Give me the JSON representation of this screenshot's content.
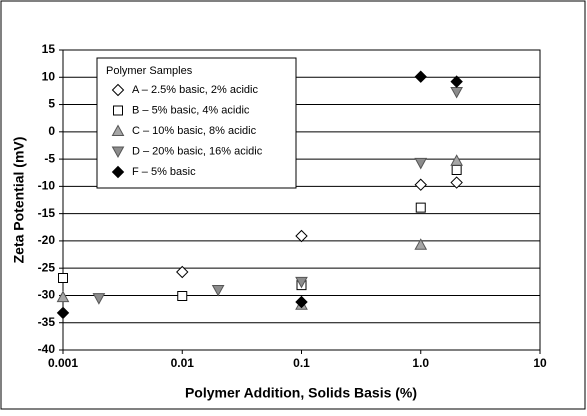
{
  "chart_data": {
    "type": "scatter",
    "x_label": "Polymer Addition, Solids Basis  (%)",
    "y_label": "Zeta Potential  (mV)",
    "xscale": "log",
    "xlim": [
      0.001,
      10
    ],
    "xticks": [
      0.001,
      0.01,
      0.1,
      {
        "value": 1,
        "label": "1.0"
      },
      10
    ],
    "ylim": [
      -40,
      15
    ],
    "yticks": [
      15,
      10,
      5,
      0,
      -5,
      -10,
      -15,
      -20,
      -25,
      -30,
      -35,
      -40
    ],
    "grid": true,
    "legend": {
      "title": "Polymer Samples",
      "location": "upper left"
    },
    "series": [
      {
        "name": "A – 2.5% basic, 2% acidic",
        "marker": "diamond",
        "color": "#ffffff",
        "x": [
          0.01,
          0.1,
          1,
          2
        ],
        "values": [
          -25.7,
          -19.1,
          -9.7,
          -9.3
        ]
      },
      {
        "name": "B – 5% basic, 4% acidic",
        "marker": "square",
        "color": "#ffffff",
        "x": [
          0.001,
          0.01,
          0.1,
          1,
          2
        ],
        "values": [
          -26.8,
          -30.1,
          -28.1,
          -13.9,
          -7
        ]
      },
      {
        "name": "C – 10% basic, 8% acidic",
        "marker": "triangle-up",
        "color": "#a6a6a6",
        "x": [
          0.001,
          0.1,
          1,
          2
        ],
        "values": [
          -30.3,
          -31.7,
          -20.7,
          -5.3
        ]
      },
      {
        "name": "D – 20% basic, 16% acidic",
        "marker": "triangle-down",
        "color": "#8c8c8c",
        "x": [
          0.002,
          0.02,
          0.1,
          1,
          2
        ],
        "values": [
          -30.5,
          -29,
          -27.5,
          -5.7,
          7.3
        ]
      },
      {
        "name": "F – 5% basic",
        "marker": "diamond",
        "color": "#000000",
        "x": [
          0.001,
          0.1,
          1,
          2
        ],
        "values": [
          -33.2,
          -31.2,
          10.1,
          9.2
        ]
      }
    ]
  }
}
